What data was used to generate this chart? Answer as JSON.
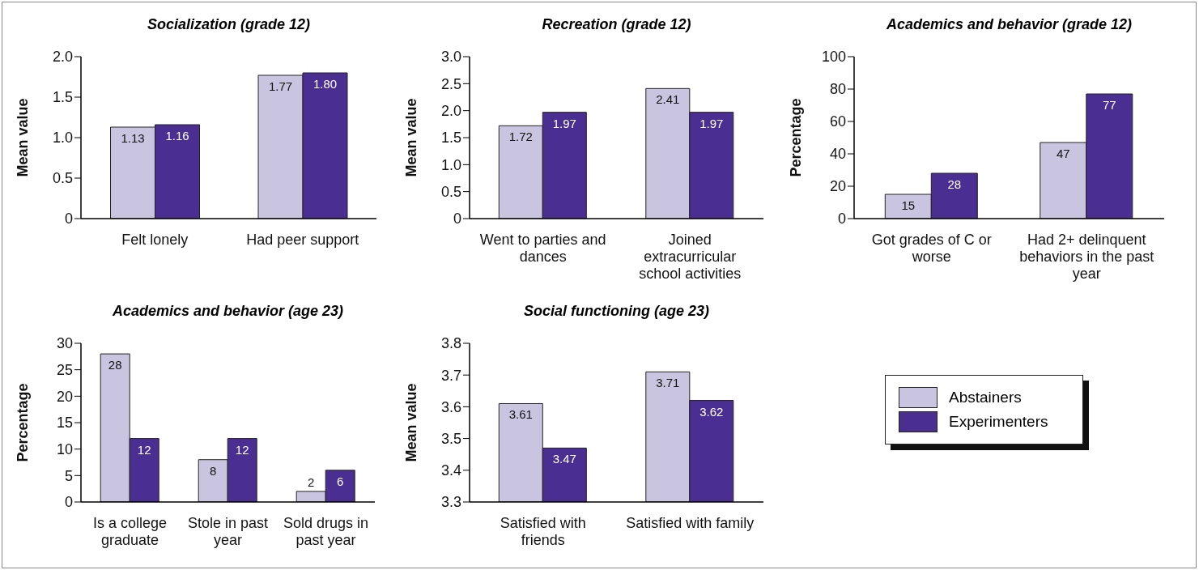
{
  "chart_data": [
    {
      "type": "bar",
      "title": "Socialization (grade 12)",
      "ylabel": "Mean value",
      "categories": [
        "Felt lonely",
        "Had peer support"
      ],
      "series": [
        {
          "color": "#c9c4df",
          "values": [
            1.13,
            1.77
          ],
          "value_labels": [
            "1.13",
            "1.77"
          ]
        },
        {
          "color": "#4b2e91",
          "values": [
            1.16,
            1.8
          ],
          "value_labels": [
            "1.16",
            "1.80"
          ]
        }
      ],
      "ylim": [
        0,
        2
      ],
      "yticks": [
        0,
        0.5,
        {
          "value": 1,
          "label": "1.0"
        },
        1.5,
        {
          "value": 2,
          "label": "2.0"
        }
      ],
      "grid": false,
      "legend": false
    },
    {
      "type": "bar",
      "title": "Recreation (grade 12)",
      "ylabel": "Mean value",
      "categories": [
        "Went to parties and dances",
        "Joined extracurricular school activities"
      ],
      "series": [
        {
          "color": "#c9c4df",
          "values": [
            1.72,
            2.41
          ],
          "value_labels": [
            "1.72",
            "2.41"
          ]
        },
        {
          "color": "#4b2e91",
          "values": [
            1.97,
            1.97
          ],
          "value_labels": [
            "1.97",
            "1.97"
          ]
        }
      ],
      "ylim": [
        0,
        3
      ],
      "yticks": [
        0,
        0.5,
        {
          "value": 1,
          "label": "1.0"
        },
        1.5,
        {
          "value": 2,
          "label": "2.0"
        },
        2.5,
        {
          "value": 3,
          "label": "3.0"
        }
      ],
      "grid": false,
      "legend": false
    },
    {
      "type": "bar",
      "title": "Academics and behavior (grade 12)",
      "ylabel": "Percentage",
      "categories": [
        "Got grades of C or worse",
        "Had 2+ delinquent behaviors in the past year"
      ],
      "series": [
        {
          "color": "#c9c4df",
          "values": [
            15,
            47
          ],
          "value_labels": [
            "15",
            "47"
          ]
        },
        {
          "color": "#4b2e91",
          "values": [
            28,
            77
          ],
          "value_labels": [
            "28",
            "77"
          ]
        }
      ],
      "ylim": [
        0,
        100
      ],
      "yticks": [
        0,
        20,
        40,
        60,
        80,
        100
      ],
      "grid": false,
      "legend": false
    },
    {
      "type": "bar",
      "title": "Academics and behavior (age 23)",
      "ylabel": "Percentage",
      "categories": [
        "Is a college graduate",
        "Stole in past year",
        "Sold drugs in past year"
      ],
      "series": [
        {
          "color": "#c9c4df",
          "values": [
            28,
            8,
            2
          ],
          "value_labels": [
            "28",
            "8",
            "2"
          ]
        },
        {
          "color": "#4b2e91",
          "values": [
            12,
            12,
            6
          ],
          "value_labels": [
            "12",
            "12",
            "6"
          ]
        }
      ],
      "ylim": [
        0,
        30
      ],
      "yticks": [
        0,
        5,
        10,
        15,
        20,
        25,
        30
      ],
      "grid": false,
      "legend": false
    },
    {
      "type": "bar",
      "title": "Social functioning (age 23)",
      "ylabel": "Mean value",
      "categories": [
        "Satisfied with friends",
        "Satisfied with family"
      ],
      "series": [
        {
          "name": "Abstainers",
          "color": "#c9c4df",
          "values": [
            3.61,
            3.71
          ],
          "value_labels": [
            "3.61",
            "3.71"
          ]
        },
        {
          "name": "Experimenters",
          "color": "#4b2e91",
          "values": [
            3.47,
            3.62
          ],
          "value_labels": [
            "3.47",
            "3.62"
          ]
        }
      ],
      "ylim": [
        3.3,
        3.8
      ],
      "yticks": [
        3.3,
        3.4,
        3.5,
        3.6,
        3.7,
        3.8
      ],
      "grid": false,
      "legend": "right"
    }
  ]
}
